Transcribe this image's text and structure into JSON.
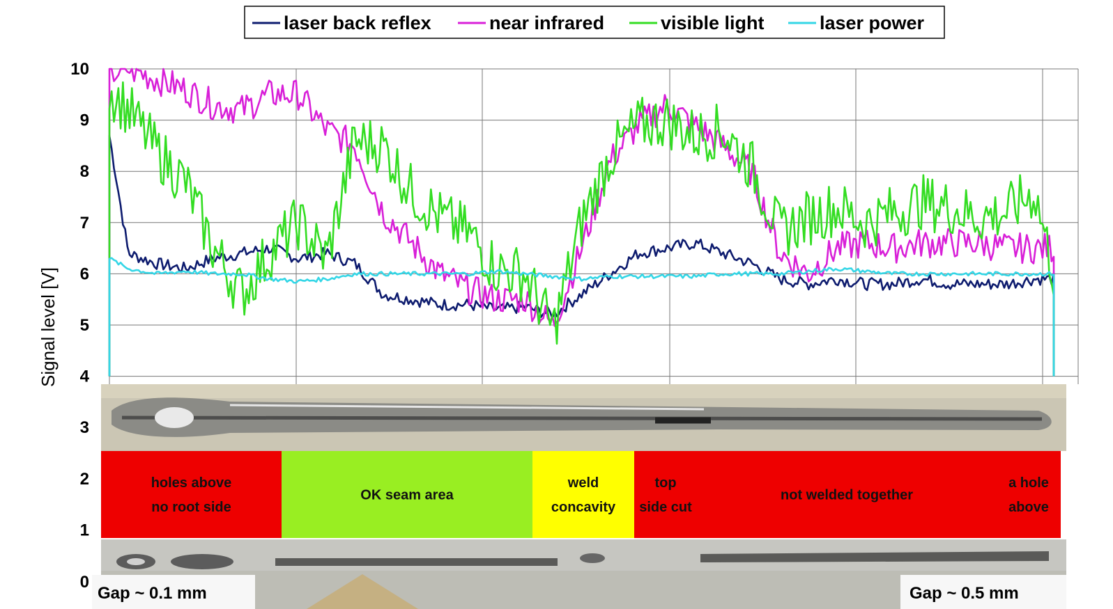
{
  "chart_data": {
    "type": "line",
    "ylabel": "Signal level [V]",
    "xlabel": "",
    "ylim": [
      0,
      10
    ],
    "yticks": [
      "0",
      "1",
      "2",
      "3",
      "4",
      "5",
      "6",
      "7",
      "8",
      "9",
      "10"
    ],
    "grid": true,
    "legend_position": "top-center",
    "x_normalized": [
      0.0,
      0.02,
      0.05,
      0.08,
      0.11,
      0.14,
      0.17,
      0.2,
      0.23,
      0.26,
      0.29,
      0.32,
      0.35,
      0.38,
      0.41,
      0.44,
      0.47,
      0.5,
      0.53,
      0.56,
      0.59,
      0.62,
      0.65,
      0.68,
      0.71,
      0.74,
      0.77,
      0.8,
      0.83,
      0.86,
      0.89,
      0.92,
      0.95,
      0.98,
      1.0
    ],
    "series": [
      {
        "name": "laser back reflex",
        "color": "#0d1b6e",
        "values": [
          8.7,
          6.4,
          6.2,
          6.1,
          6.3,
          6.4,
          6.5,
          6.3,
          6.4,
          6.2,
          5.6,
          5.5,
          5.4,
          5.4,
          5.3,
          5.35,
          5.2,
          5.6,
          6.0,
          6.4,
          6.5,
          6.6,
          6.4,
          6.2,
          5.9,
          5.8,
          5.9,
          5.8,
          5.8,
          5.9,
          5.8,
          5.8,
          5.8,
          5.9,
          5.9
        ]
      },
      {
        "name": "near infrared",
        "color": "#d81fd8",
        "values": [
          9.9,
          10.0,
          9.8,
          9.6,
          9.3,
          9.2,
          9.5,
          9.5,
          8.8,
          8.5,
          7.2,
          6.6,
          6.0,
          5.7,
          5.5,
          5.5,
          5.0,
          6.5,
          8.2,
          8.9,
          9.3,
          8.9,
          8.5,
          8.0,
          6.4,
          6.0,
          6.5,
          6.6,
          6.5,
          6.6,
          6.6,
          6.6,
          6.5,
          6.5,
          6.5
        ]
      },
      {
        "name": "visible light",
        "color": "#33dd22",
        "values": [
          9.6,
          9.2,
          8.4,
          7.8,
          6.5,
          5.6,
          6.4,
          7.0,
          6.3,
          8.6,
          8.5,
          7.6,
          7.1,
          6.8,
          6.1,
          6.0,
          4.9,
          7.0,
          8.3,
          8.9,
          9.0,
          8.7,
          8.8,
          8.1,
          6.8,
          7.1,
          7.3,
          7.0,
          7.2,
          7.4,
          7.3,
          7.1,
          7.2,
          7.6,
          6.0
        ]
      },
      {
        "name": "laser power",
        "color": "#33d6e6",
        "values": [
          6.3,
          6.1,
          6.0,
          6.05,
          6.0,
          6.0,
          5.9,
          5.85,
          5.9,
          6.0,
          6.0,
          6.0,
          6.0,
          6.0,
          6.05,
          6.0,
          5.95,
          5.9,
          5.95,
          5.95,
          5.95,
          5.95,
          6.0,
          6.0,
          6.0,
          6.05,
          6.1,
          6.05,
          6.0,
          6.0,
          6.0,
          6.0,
          6.0,
          6.0,
          6.0
        ]
      }
    ],
    "zones": [
      {
        "label_lines": [
          "holes above",
          "no root side"
        ],
        "color": "#ee0000"
      },
      {
        "label_lines": [
          "OK seam area"
        ],
        "color": "#99ee22"
      },
      {
        "label_lines": [
          "weld",
          "concavity"
        ],
        "color": "#ffff00"
      },
      {
        "label_lines": [
          "top",
          "side cut"
        ],
        "color": "#ee0000"
      },
      {
        "label_lines": [
          "not welded together"
        ],
        "color": "#ee0000"
      },
      {
        "label_lines": [
          "a hole",
          "above"
        ],
        "color": "#ee0000"
      }
    ],
    "gap_labels": {
      "left": "Gap ~ 0.1 mm",
      "right": "Gap ~ 0.5 mm"
    }
  }
}
